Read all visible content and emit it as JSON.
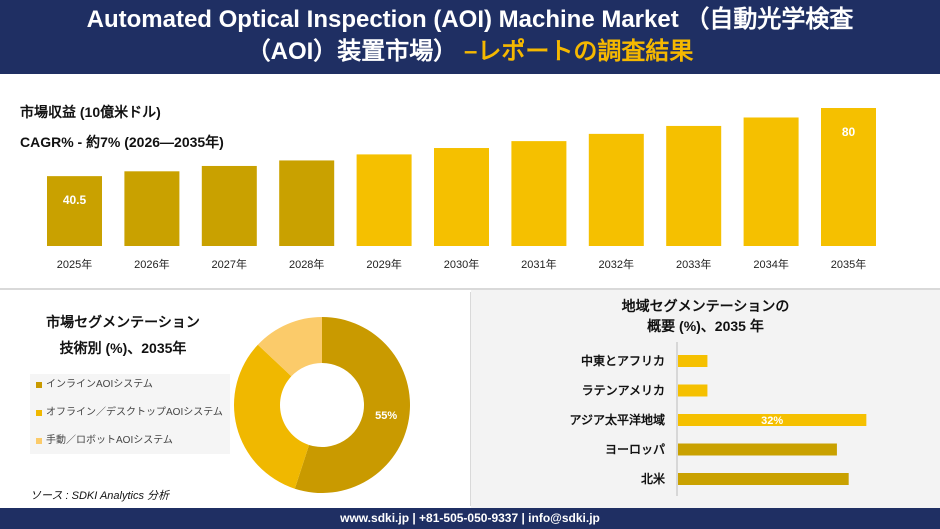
{
  "header": {
    "title_line1": "Automated Optical Inspection (AOI) Machine Market （自動光学検査",
    "title_line2_main": "（AOI）装置市場）",
    "title_line2_accent": "–レポートの調査結果"
  },
  "top_chart": {
    "metric_label": "市場収益 (10億米ドル)",
    "cagr_label": "CAGR% - 約7% (2026—2035年)"
  },
  "segment_panel": {
    "title_line1": "市場セグメンテーション",
    "title_line2": "技術別 (%)、2035年",
    "source": "ソース : SDKI Analytics 分析"
  },
  "region_panel": {
    "title_line1": "地域セグメンテーションの",
    "title_line2": "概要 (%)、2035 年"
  },
  "footer": {
    "contact": "www.sdki.jp | +81-505-050-9337 | info@sdki.jp"
  },
  "colors": {
    "navy": "#1f2f63",
    "gold": "#f5b800",
    "bar_dark": "#c9a100",
    "bar_light": "#f5c000"
  },
  "chart_data": [
    {
      "type": "bar",
      "categories": [
        "2025年",
        "2026年",
        "2027年",
        "2028年",
        "2029年",
        "2030年",
        "2031年",
        "2032年",
        "2033年",
        "2034年",
        "2035年"
      ],
      "values": [
        40.5,
        43.3,
        46.4,
        49.6,
        53.1,
        56.8,
        60.8,
        65.0,
        69.6,
        74.5,
        80
      ],
      "data_labels": [
        "40.5",
        "",
        "",
        "",
        "",
        "",
        "",
        "",
        "",
        "",
        "80"
      ],
      "colors": [
        "#c9a100",
        "#c9a100",
        "#c9a100",
        "#c9a100",
        "#f5c000",
        "#f5c000",
        "#f5c000",
        "#f5c000",
        "#f5c000",
        "#f5c000",
        "#f5c000"
      ],
      "ylim": [
        0,
        80
      ],
      "grid": false
    },
    {
      "type": "pie",
      "categories": [
        "インラインAOIシステム",
        "オフライン／デスクトップAOIシステム",
        "手動／ロボットAOIシステム"
      ],
      "values": [
        55,
        32,
        13
      ],
      "data_labels": [
        "55%",
        "",
        ""
      ],
      "colors": [
        "#c99a00",
        "#f0b800",
        "#fbcb6a"
      ],
      "donut": true
    },
    {
      "type": "bar",
      "orientation": "horizontal",
      "categories": [
        "中東とアフリカ",
        "ラテンアメリカ",
        "アジア太平洋地域",
        "ヨーロッパ",
        "北米"
      ],
      "values": [
        5,
        5,
        32,
        27,
        29
      ],
      "data_labels": [
        "",
        "",
        "32%",
        "",
        ""
      ],
      "colors": [
        "#f5c000",
        "#f5c000",
        "#f5c000",
        "#c9a100",
        "#c9a100"
      ],
      "xlim": [
        0,
        35
      ]
    }
  ]
}
